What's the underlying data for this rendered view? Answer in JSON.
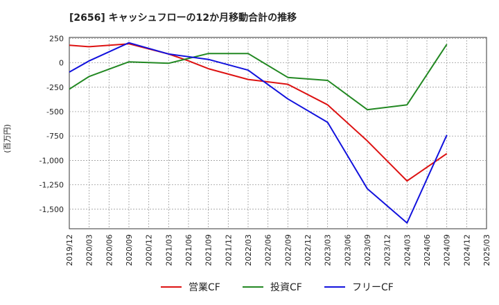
{
  "chart_data": {
    "type": "line",
    "title": "[2656]  キャッシュフローの12か月移動合計の推移",
    "ylabel": "(百万円)",
    "xlabel": "",
    "ylim": [
      -1700,
      260
    ],
    "yticks": [
      250,
      0,
      -250,
      -500,
      -750,
      -1000,
      -1250,
      -1500
    ],
    "ytick_labels": [
      "250",
      "0",
      "-250",
      "-500",
      "-750",
      "-1,000",
      "-1,250",
      "-1,500"
    ],
    "categories": [
      "2019/12",
      "2020/03",
      "2020/06",
      "2020/09",
      "2020/12",
      "2021/03",
      "2021/06",
      "2021/09",
      "2021/12",
      "2022/03",
      "2022/06",
      "2022/09",
      "2022/12",
      "2023/03",
      "2023/06",
      "2023/09",
      "2023/12",
      "2024/03",
      "2024/06",
      "2024/09",
      "2024/12",
      "2025/03"
    ],
    "legend_position": "bottom-center",
    "grid": true,
    "series": [
      {
        "name": "営業CF",
        "color": "#dd1111",
        "values": [
          180,
          165,
          null,
          195,
          null,
          90,
          20,
          -60,
          null,
          -170,
          null,
          -220,
          null,
          -430,
          null,
          -800,
          null,
          -1210,
          null,
          -930,
          null,
          null
        ]
      },
      {
        "name": "投資CF",
        "color": "#228822",
        "values": [
          -270,
          -140,
          null,
          10,
          null,
          -5,
          null,
          95,
          null,
          95,
          null,
          -150,
          null,
          -180,
          null,
          -480,
          null,
          -430,
          null,
          190,
          null,
          null
        ]
      },
      {
        "name": "フリーCF",
        "color": "#1111dd",
        "values": [
          -95,
          20,
          null,
          205,
          null,
          90,
          null,
          35,
          null,
          -75,
          null,
          -370,
          null,
          -610,
          null,
          -1290,
          null,
          -1640,
          null,
          -740,
          null,
          null
        ]
      }
    ]
  }
}
